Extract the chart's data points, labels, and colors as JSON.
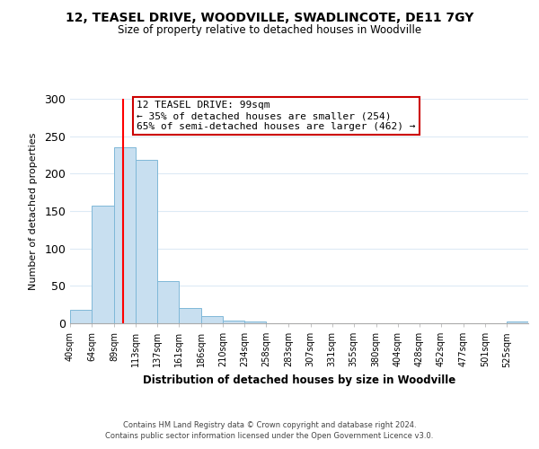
{
  "title": "12, TEASEL DRIVE, WOODVILLE, SWADLINCOTE, DE11 7GY",
  "subtitle": "Size of property relative to detached houses in Woodville",
  "bar_values": [
    18,
    157,
    235,
    219,
    57,
    20,
    10,
    4,
    2,
    0,
    0,
    0,
    0,
    0,
    0,
    0,
    0,
    0,
    0,
    0,
    2
  ],
  "bin_edges": [
    40,
    64,
    89,
    113,
    137,
    161,
    186,
    210,
    234,
    258,
    283,
    307,
    331,
    355,
    380,
    404,
    428,
    452,
    477,
    501,
    525,
    549
  ],
  "xtick_labels": [
    "40sqm",
    "64sqm",
    "89sqm",
    "113sqm",
    "137sqm",
    "161sqm",
    "186sqm",
    "210sqm",
    "234sqm",
    "258sqm",
    "283sqm",
    "307sqm",
    "331sqm",
    "355sqm",
    "380sqm",
    "404sqm",
    "428sqm",
    "452sqm",
    "477sqm",
    "501sqm",
    "525sqm"
  ],
  "xlabel": "Distribution of detached houses by size in Woodville",
  "ylabel": "Number of detached properties",
  "ylim": [
    0,
    300
  ],
  "yticks": [
    0,
    50,
    100,
    150,
    200,
    250,
    300
  ],
  "bar_color": "#c8dff0",
  "bar_edge_color": "#7fb8d8",
  "red_line_x": 99,
  "annotation_title": "12 TEASEL DRIVE: 99sqm",
  "annotation_line1": "← 35% of detached houses are smaller (254)",
  "annotation_line2": "65% of semi-detached houses are larger (462) →",
  "annotation_box_color": "#ffffff",
  "annotation_box_edge_color": "#cc0000",
  "footer_line1": "Contains HM Land Registry data © Crown copyright and database right 2024.",
  "footer_line2": "Contains public sector information licensed under the Open Government Licence v3.0.",
  "background_color": "#ffffff",
  "grid_color": "#ddeaf5"
}
